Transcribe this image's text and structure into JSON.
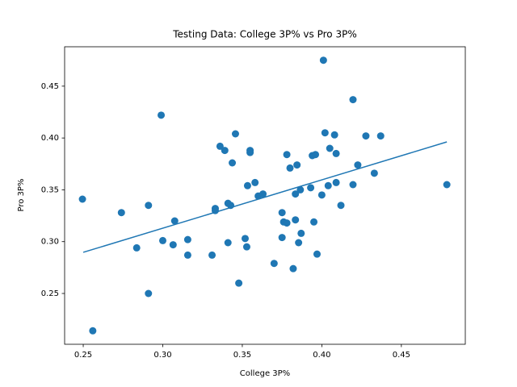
{
  "chart_data": {
    "type": "scatter",
    "title": "Testing Data: College 3P% vs Pro 3P%",
    "x_label": "College 3P%",
    "y_label": "Pro 3P%",
    "xlim": [
      0.2383,
      0.4902
    ],
    "ylim": [
      0.201,
      0.488
    ],
    "xticks": [
      0.25,
      {
        "value": 0.3,
        "label": "0.30"
      },
      0.35,
      {
        "value": 0.4,
        "label": "0.40"
      },
      0.45
    ],
    "yticks": [
      0.25,
      {
        "value": 0.3,
        "label": "0.30"
      },
      0.35,
      {
        "value": 0.4,
        "label": "0.40"
      },
      0.45
    ],
    "series": [
      {
        "color": "#1f77b4",
        "x": [
          0.2495,
          0.256,
          0.274,
          0.2836,
          0.291,
          0.291,
          0.299,
          0.3,
          0.3065,
          0.3075,
          0.3157,
          0.3157,
          0.331,
          0.333,
          0.333,
          0.336,
          0.339,
          0.341,
          0.341,
          0.3427,
          0.3437,
          0.3457,
          0.3478,
          0.3518,
          0.3528,
          0.3533,
          0.3549,
          0.3549,
          0.358,
          0.36,
          0.363,
          0.37,
          0.375,
          0.375,
          0.376,
          0.378,
          0.378,
          0.38,
          0.382,
          0.3834,
          0.3834,
          0.3844,
          0.3854,
          0.3865,
          0.387,
          0.393,
          0.394,
          0.396,
          0.395,
          0.397,
          0.4,
          0.401,
          0.402,
          0.404,
          0.405,
          0.408,
          0.409,
          0.409,
          0.412,
          0.4196,
          0.4196,
          0.4226,
          0.4277,
          0.433,
          0.437,
          0.4786
        ],
        "values": [
          0.341,
          0.214,
          0.328,
          0.294,
          0.335,
          0.25,
          0.422,
          0.301,
          0.297,
          0.32,
          0.302,
          0.287,
          0.287,
          0.332,
          0.33,
          0.392,
          0.388,
          0.337,
          0.299,
          0.335,
          0.376,
          0.404,
          0.26,
          0.303,
          0.295,
          0.354,
          0.388,
          0.386,
          0.357,
          0.344,
          0.346,
          0.279,
          0.328,
          0.304,
          0.319,
          0.318,
          0.384,
          0.371,
          0.274,
          0.346,
          0.321,
          0.374,
          0.299,
          0.35,
          0.308,
          0.352,
          0.383,
          0.384,
          0.319,
          0.288,
          0.345,
          0.475,
          0.405,
          0.354,
          0.39,
          0.403,
          0.385,
          0.357,
          0.335,
          0.437,
          0.355,
          0.374,
          0.402,
          0.366,
          0.402,
          0.355
        ]
      }
    ],
    "trend_line": {
      "color": "#1f77b4",
      "x": [
        0.25,
        0.4786
      ],
      "values": [
        0.2897,
        0.3962
      ]
    }
  }
}
